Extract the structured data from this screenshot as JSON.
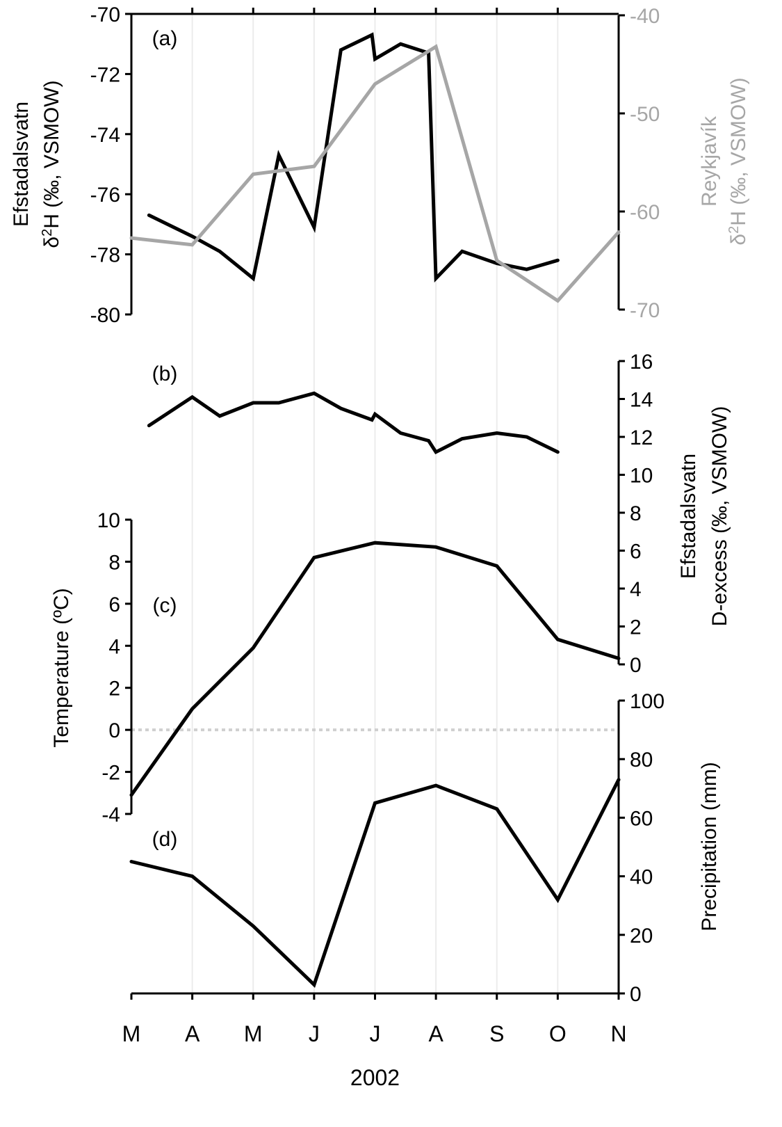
{
  "chart_data": [
    {
      "panel": "(a)",
      "type": "line",
      "x_unit": "months since 1 Mar 2002",
      "left_axis": {
        "label_line1": "Efstadalsvatn",
        "label_line2": "δ2H (‰, VSMOW)",
        "ylim": [
          -80,
          -70
        ],
        "ticks": [
          -70,
          -72,
          -74,
          -76,
          -78,
          -80
        ]
      },
      "right_axis": {
        "label_line1": "Reykjavík",
        "label_line2": "δ2H (‰, VSMOW)",
        "ylim": [
          -70,
          -40
        ],
        "ticks": [
          -40,
          -50,
          -60,
          -70
        ],
        "color": "#a6a6a6"
      },
      "series": [
        {
          "name": "Efstadalsvatn",
          "axis": "left",
          "color": "#000000",
          "x": [
            0.29,
            1.0,
            1.45,
            2.0,
            2.42,
            3.0,
            3.44,
            3.95,
            4.0,
            4.42,
            4.88,
            5.0,
            5.43,
            6.0,
            6.49,
            7.0
          ],
          "y": [
            -76.7,
            -77.4,
            -77.9,
            -78.8,
            -74.7,
            -77.1,
            -71.2,
            -70.7,
            -71.5,
            -71.0,
            -71.3,
            -78.8,
            -77.9,
            -78.3,
            -78.5,
            -78.2
          ]
        },
        {
          "name": "Reykjavík",
          "axis": "right",
          "color": "#a6a6a6",
          "x": [
            0,
            1,
            2,
            3,
            4,
            5,
            6,
            7,
            8
          ],
          "y": [
            -62.7,
            -63.4,
            -56.2,
            -55.4,
            -47.0,
            -43.2,
            -65.0,
            -69.1,
            -62.1
          ]
        }
      ]
    },
    {
      "panel": "(b)",
      "type": "line",
      "right_axis": {
        "label_line1": "Efstadalsvatn",
        "label_line2": "D-excess (‰, VSMOW)",
        "ylim": [
          0,
          16
        ],
        "ticks": [
          0,
          2,
          4,
          6,
          8,
          10,
          12,
          14,
          16
        ]
      },
      "series": [
        {
          "name": "Efstadalsvatn D-excess",
          "axis": "right",
          "color": "#000000",
          "x": [
            0.29,
            1.0,
            1.45,
            2.0,
            2.42,
            3.0,
            3.44,
            3.95,
            4.0,
            4.42,
            4.88,
            5.0,
            5.43,
            6.0,
            6.49,
            7.0
          ],
          "y": [
            12.6,
            14.1,
            13.1,
            13.8,
            13.8,
            14.3,
            13.5,
            12.9,
            13.2,
            12.2,
            11.8,
            11.2,
            11.9,
            12.2,
            12.0,
            11.2
          ]
        }
      ]
    },
    {
      "panel": "(c)",
      "type": "line",
      "left_axis": {
        "label": "Temperature (ºC)",
        "ylim": [
          -4,
          10
        ],
        "ticks": [
          10,
          8,
          6,
          4,
          2,
          0,
          -2,
          -4
        ]
      },
      "series": [
        {
          "name": "Temperature",
          "axis": "left",
          "color": "#000000",
          "x": [
            0,
            1,
            2,
            3,
            4,
            5,
            6,
            7,
            8
          ],
          "y": [
            -3.1,
            1.0,
            3.9,
            8.2,
            8.9,
            8.7,
            7.8,
            4.3,
            3.4
          ]
        }
      ]
    },
    {
      "panel": "(d)",
      "type": "line",
      "right_axis": {
        "label": "Precipitation (mm)",
        "ylim": [
          0,
          100
        ],
        "ticks": [
          0,
          20,
          40,
          60,
          80,
          100
        ]
      },
      "series": [
        {
          "name": "Precipitation",
          "axis": "right",
          "color": "#000000",
          "x": [
            0,
            1,
            2,
            3,
            4,
            5,
            6,
            7,
            8
          ],
          "y": [
            45,
            40,
            23,
            3,
            65,
            71,
            63,
            32,
            73
          ]
        }
      ]
    }
  ],
  "x_axis": {
    "tick_labels": [
      "M",
      "A",
      "M",
      "J",
      "J",
      "A",
      "S",
      "O",
      "N"
    ],
    "label": "2002"
  }
}
